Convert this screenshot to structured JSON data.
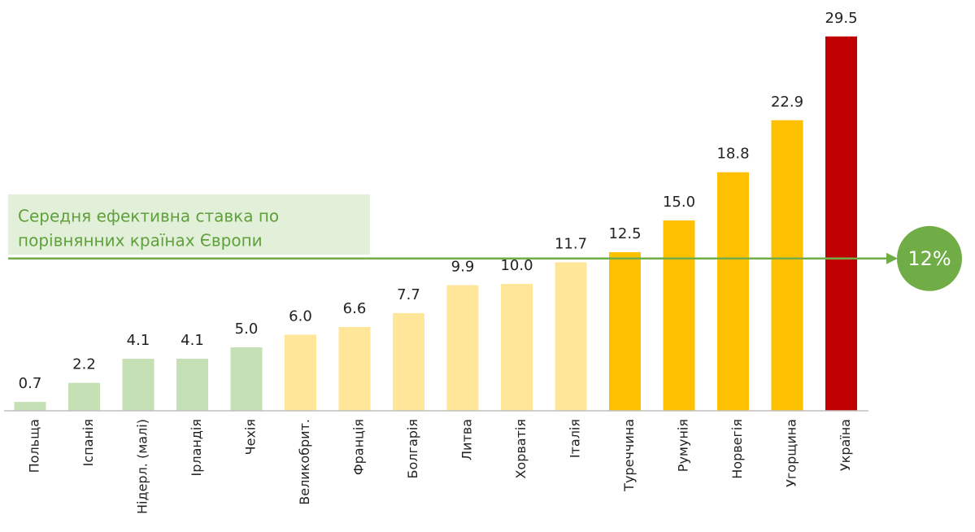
{
  "chart_data": {
    "type": "bar",
    "categories": [
      "Польща",
      "Іспанія",
      "Нідерл. (малі)",
      "Ірландія",
      "Чехія",
      "Великобрит.",
      "Франція",
      "Болгарія",
      "Литва",
      "Хорватія",
      "Італія",
      "Туреччина",
      "Румунія",
      "Норвегія",
      "Угорщина",
      "Україна"
    ],
    "values": [
      0.7,
      2.2,
      4.1,
      4.1,
      5.0,
      6.0,
      6.6,
      7.7,
      9.9,
      10.0,
      11.7,
      12.5,
      15.0,
      18.8,
      22.9,
      29.5
    ],
    "value_labels": [
      "0.7",
      "2.2",
      "4.1",
      "4.1",
      "5.0",
      "6.0",
      "6.6",
      "7.7",
      "9.9",
      "10.0",
      "11.7",
      "12.5",
      "15.0",
      "18.8",
      "22.9",
      "29.5"
    ],
    "colors": [
      "#c5e0b4",
      "#c5e0b4",
      "#c5e0b4",
      "#c5e0b4",
      "#c5e0b4",
      "#ffe699",
      "#ffe699",
      "#ffe699",
      "#ffe699",
      "#ffe699",
      "#ffe699",
      "#ffc000",
      "#ffc000",
      "#ffc000",
      "#ffc000",
      "#c00000"
    ],
    "ylim": [
      0,
      30
    ],
    "reference_line": {
      "value": 12,
      "label": "12%",
      "color": "#70ad47",
      "text": [
        "Середня ефективна ставка по",
        "порівнянних країнах Європи"
      ]
    }
  }
}
